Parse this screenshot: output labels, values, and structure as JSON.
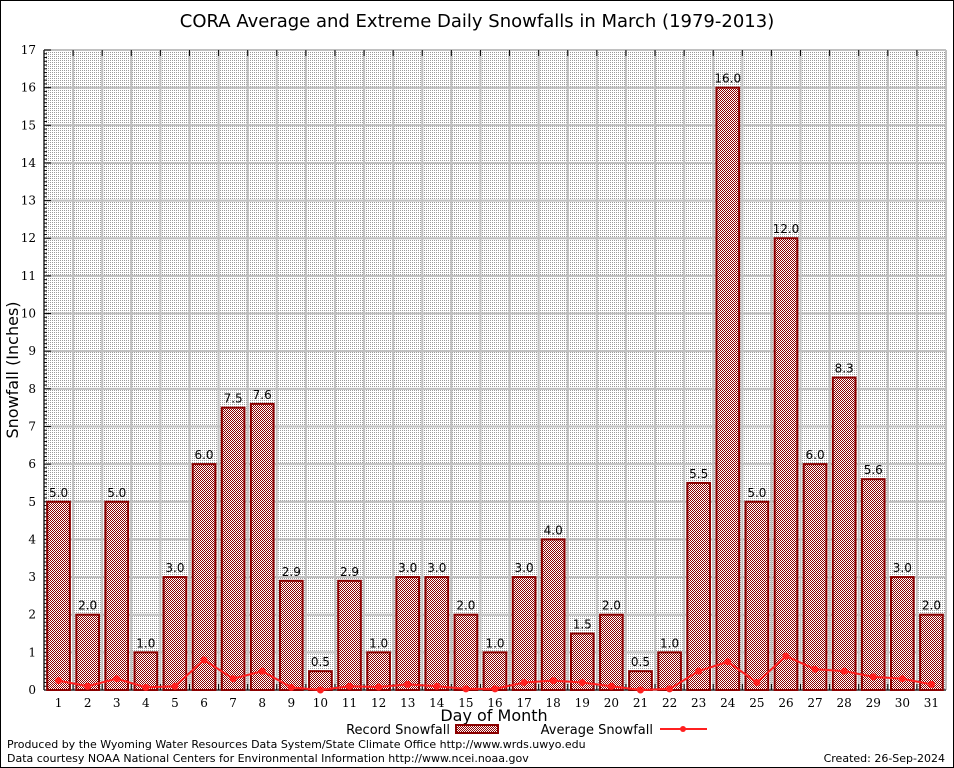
{
  "chart_data": {
    "type": "bar",
    "title": "CORA Average and Extreme Daily Snowfalls in March (1979-2013)",
    "xlabel": "Day of Month",
    "ylabel": "Snowfall (Inches)",
    "ylim": [
      0,
      17
    ],
    "yticks": [
      0,
      1,
      2,
      3,
      4,
      5,
      6,
      7,
      8,
      9,
      10,
      11,
      12,
      13,
      14,
      15,
      16,
      17
    ],
    "grid": true,
    "categories": [
      "1",
      "2",
      "3",
      "4",
      "5",
      "6",
      "7",
      "8",
      "9",
      "10",
      "11",
      "12",
      "13",
      "14",
      "15",
      "16",
      "17",
      "18",
      "19",
      "20",
      "21",
      "22",
      "23",
      "24",
      "25",
      "26",
      "27",
      "28",
      "29",
      "30",
      "31"
    ],
    "series": [
      {
        "name": "Record Snowfall",
        "kind": "bar",
        "color": "#8b0000",
        "values": [
          5.0,
          2.0,
          5.0,
          1.0,
          3.0,
          6.0,
          7.5,
          7.6,
          2.9,
          0.5,
          2.9,
          1.0,
          3.0,
          3.0,
          2.0,
          1.0,
          3.0,
          4.0,
          1.5,
          2.0,
          0.5,
          1.0,
          5.5,
          16.0,
          5.0,
          12.0,
          6.0,
          8.3,
          5.6,
          3.0,
          2.0
        ],
        "labels": [
          "5.0",
          "2.0",
          "5.0",
          "1.0",
          "3.0",
          "6.0",
          "7.5",
          "7.6",
          "2.9",
          "0.5",
          "2.9",
          "1.0",
          "3.0",
          "3.0",
          "2.0",
          "1.0",
          "3.0",
          "4.0",
          "1.5",
          "2.0",
          "0.5",
          "1.0",
          "5.5",
          "16.0",
          "5.0",
          "12.0",
          "6.0",
          "8.3",
          "5.6",
          "3.0",
          "2.0"
        ]
      },
      {
        "name": "Average Snowfall",
        "kind": "line",
        "color": "#ff2020",
        "values": [
          0.25,
          0.1,
          0.3,
          0.07,
          0.1,
          0.8,
          0.3,
          0.5,
          0.07,
          0.0,
          0.1,
          0.08,
          0.15,
          0.1,
          0.03,
          0.03,
          0.2,
          0.25,
          0.2,
          0.1,
          0.0,
          0.03,
          0.5,
          0.75,
          0.2,
          0.9,
          0.55,
          0.5,
          0.35,
          0.3,
          0.15
        ]
      }
    ],
    "legend": {
      "placement": "bottom-center",
      "entries": [
        "Record Snowfall",
        "Average Snowfall"
      ]
    }
  },
  "footer": {
    "line1": "Produced by the Wyoming Water Resources Data System/State Climate Office http://www.wrds.uwyo.edu",
    "line2": "Data courtesy NOAA National Centers for Environmental Information http://www.ncei.noaa.gov",
    "created": "Created: 26-Sep-2024"
  }
}
